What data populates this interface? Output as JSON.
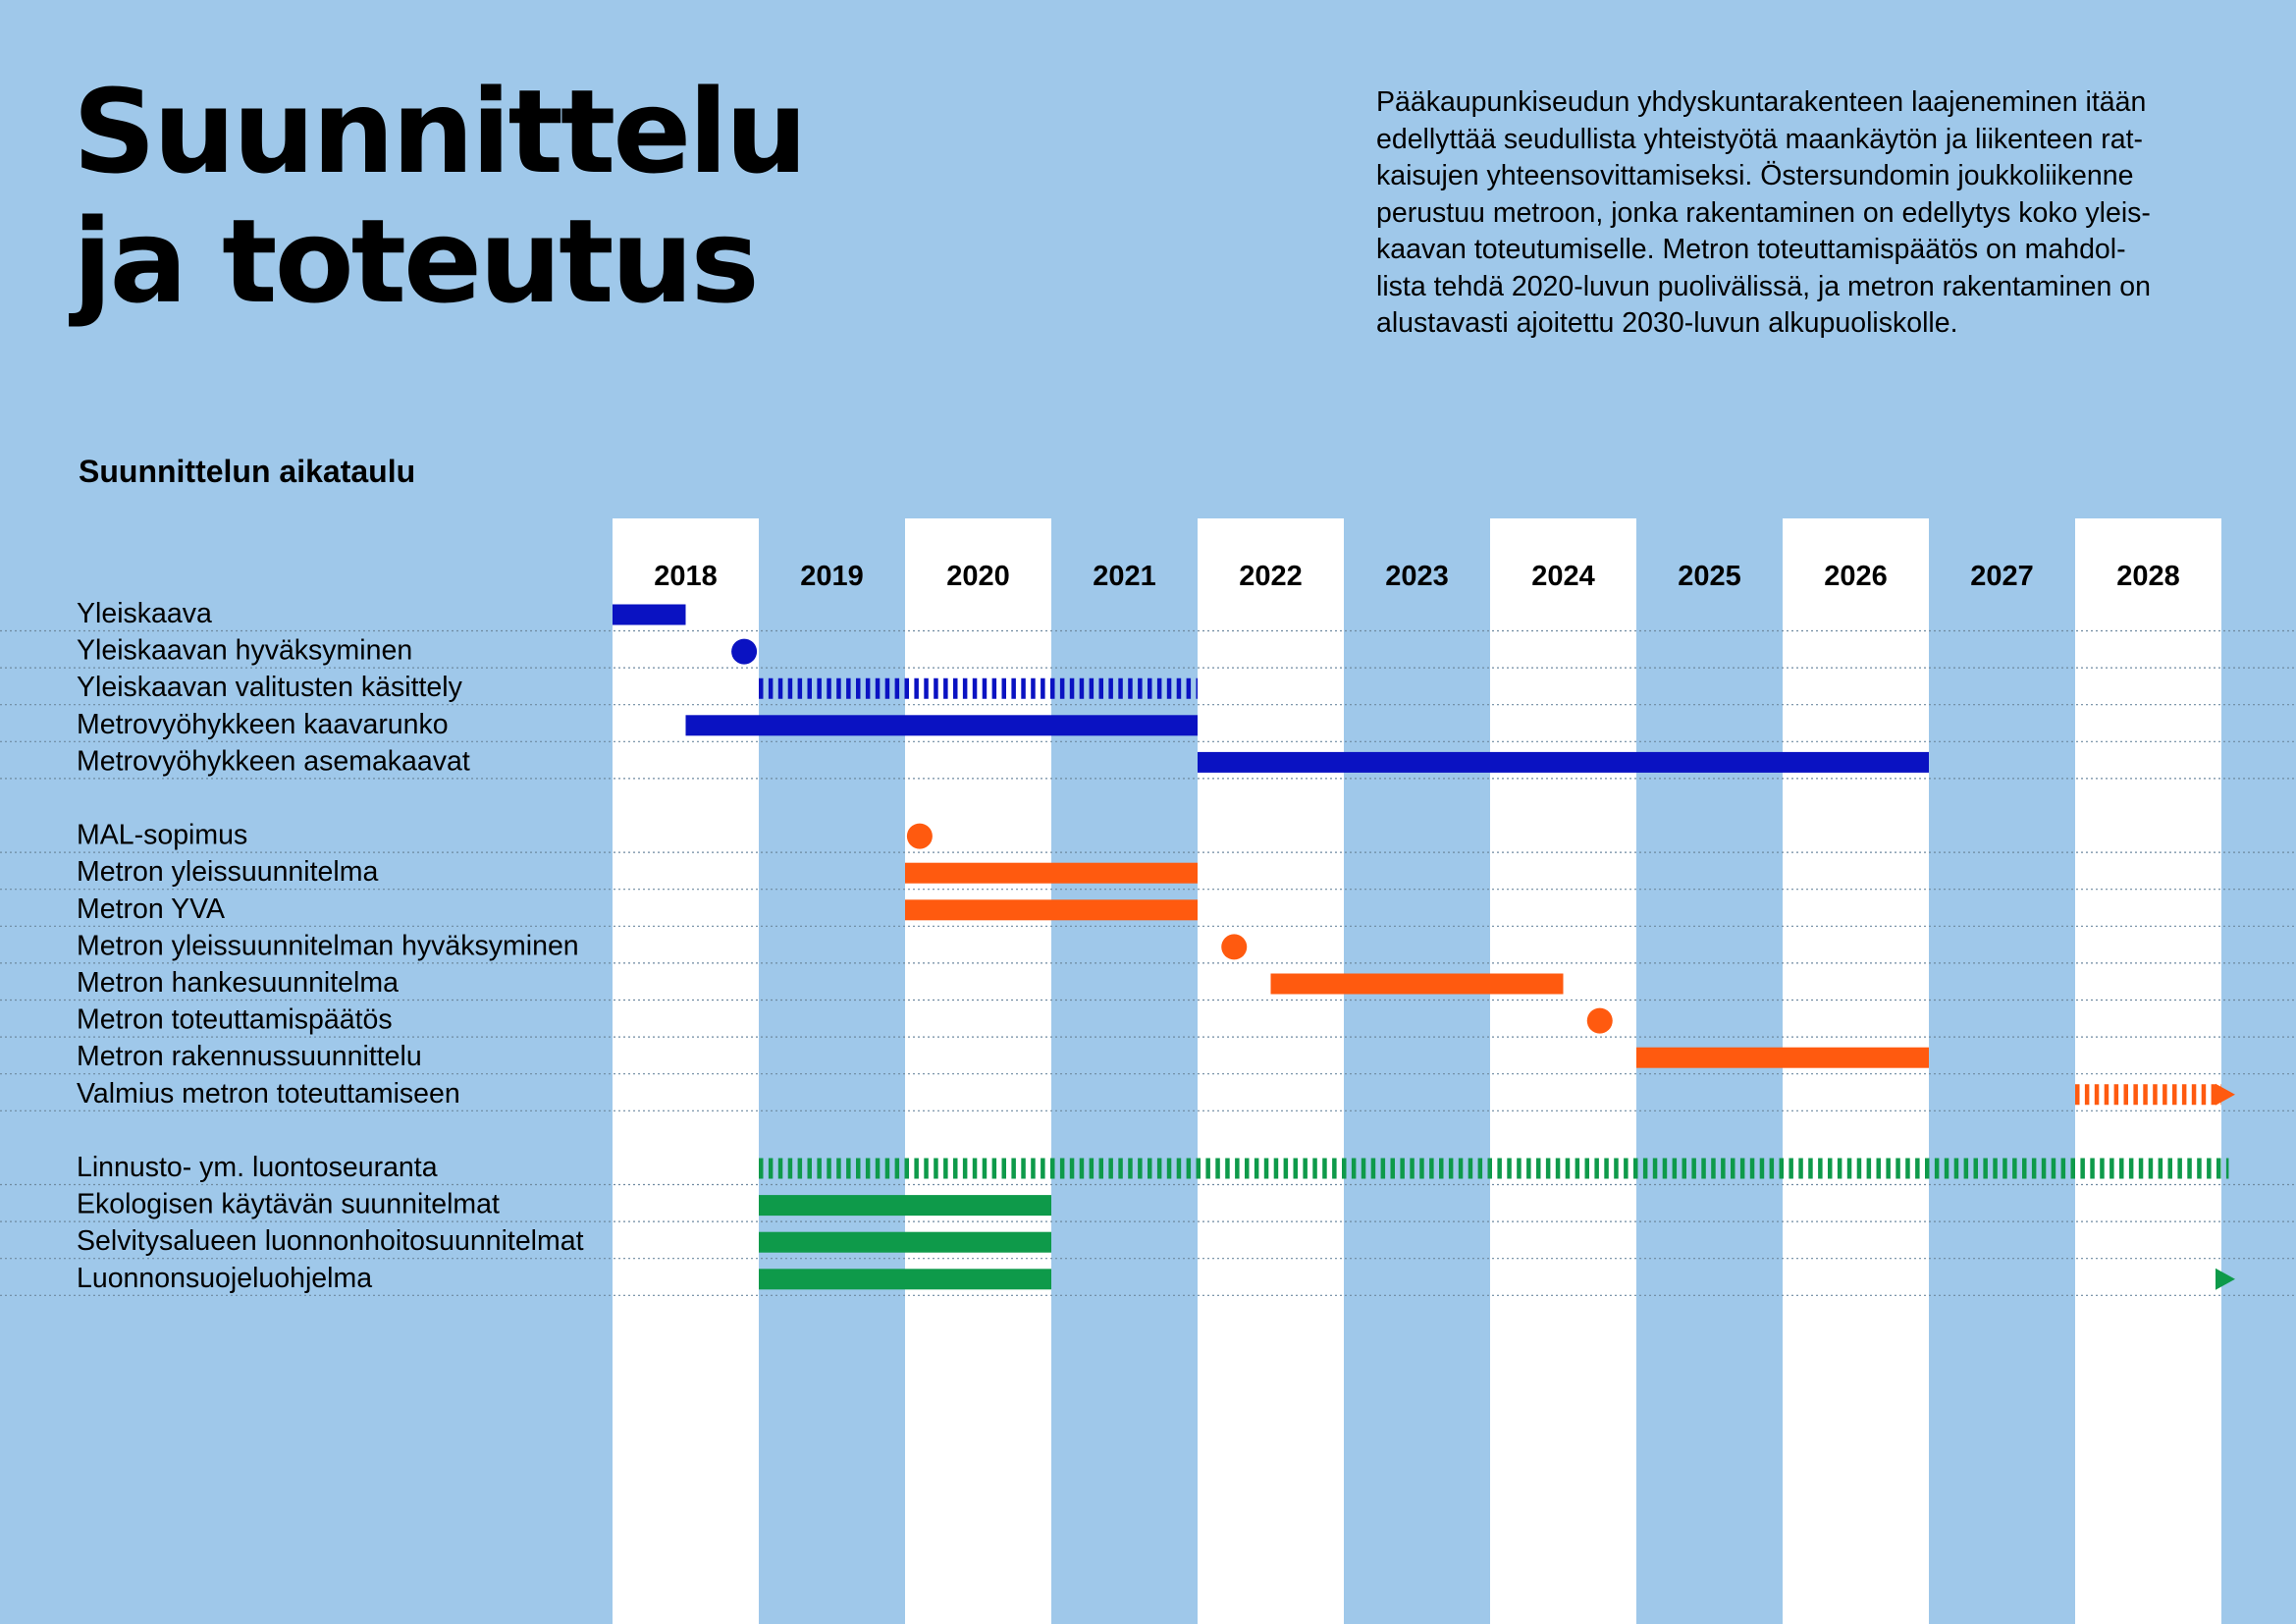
{
  "header": {
    "title_line1": "Suunnittelu",
    "title_line2": "ja toteutus",
    "intro_lines": [
      "Pääkaupunkiseudun yhdyskuntarakenteen laajeneminen itään",
      "edellyttää seudullista yhteistyötä maankäytön ja liikenteen rat-",
      "kaisujen yhteensovittamiseksi. Östersundomin joukkoliikenne",
      "perustuu metroon, jonka rakentaminen on edellytys koko yleis-",
      "kaavan toteutumiselle. Metron toteuttamispäätös on mahdol-",
      "lista tehdä 2020-luvun puolivälissä, ja metron rakentaminen on",
      "alustavasti ajoitettu 2030-luvun alkupuoliskolle."
    ]
  },
  "colors": {
    "background": "#9fc8ea",
    "column_white": "#ffffff",
    "blue": "#0a12c2",
    "orange": "#ff5a0f",
    "green": "#0e9a4a",
    "rule": "#6f8aa0"
  },
  "chart_data": {
    "type": "gantt",
    "title": "Suunnittelun aikataulu",
    "years": [
      "2018",
      "2019",
      "2020",
      "2021",
      "2022",
      "2023",
      "2024",
      "2025",
      "2026",
      "2027",
      "2028"
    ],
    "xlim": [
      2018,
      2029
    ],
    "rows": [
      {
        "label": "Yleiskaava",
        "color": "blue",
        "marks": [
          {
            "kind": "bar",
            "start": 2018.0,
            "end": 2018.5
          }
        ]
      },
      {
        "label": "Yleiskaavan hyväksyminen",
        "color": "blue",
        "marks": [
          {
            "kind": "dot",
            "at": 2018.9
          }
        ]
      },
      {
        "label": "Yleiskaavan valitusten käsittely",
        "color": "blue",
        "marks": [
          {
            "kind": "dashed",
            "start": 2019.0,
            "end": 2022.0
          }
        ]
      },
      {
        "label": "Metrovyöhykkeen kaavarunko",
        "color": "blue",
        "marks": [
          {
            "kind": "bar",
            "start": 2018.5,
            "end": 2022.0
          }
        ]
      },
      {
        "label": "Metrovyöhykkeen asemakaavat",
        "color": "blue",
        "marks": [
          {
            "kind": "bar",
            "start": 2022.0,
            "end": 2027.0
          }
        ]
      },
      {
        "label": "",
        "color": "",
        "marks": []
      },
      {
        "label": "MAL-sopimus",
        "color": "orange",
        "marks": [
          {
            "kind": "dot",
            "at": 2020.1
          }
        ]
      },
      {
        "label": "Metron yleissuunnitelma",
        "color": "orange",
        "marks": [
          {
            "kind": "bar",
            "start": 2020.0,
            "end": 2022.0
          }
        ]
      },
      {
        "label": "Metron YVA",
        "color": "orange",
        "marks": [
          {
            "kind": "bar",
            "start": 2020.0,
            "end": 2022.0
          }
        ]
      },
      {
        "label": "Metron yleissuunnitelman hyväksyminen",
        "color": "orange",
        "marks": [
          {
            "kind": "dot",
            "at": 2022.25
          }
        ]
      },
      {
        "label": "Metron hankesuunnitelma",
        "color": "orange",
        "marks": [
          {
            "kind": "bar",
            "start": 2022.5,
            "end": 2024.5
          }
        ]
      },
      {
        "label": "Metron toteuttamispäätös",
        "color": "orange",
        "marks": [
          {
            "kind": "dot",
            "at": 2024.75
          }
        ]
      },
      {
        "label": "Metron rakennussuunnittelu",
        "color": "orange",
        "marks": [
          {
            "kind": "bar",
            "start": 2025.0,
            "end": 2027.0
          }
        ]
      },
      {
        "label": "Valmius metron toteuttamiseen",
        "color": "orange",
        "marks": [
          {
            "kind": "dashed",
            "start": 2028.0,
            "end": 2029.0
          },
          {
            "kind": "arrow",
            "at": 2029.0
          }
        ]
      },
      {
        "label": "",
        "color": "",
        "marks": []
      },
      {
        "label": "Linnusto- ym. luontoseuranta",
        "color": "green",
        "marks": [
          {
            "kind": "dashed",
            "start": 2019.0,
            "end": 2029.05
          }
        ]
      },
      {
        "label": "Ekologisen käytävän suunnitelmat",
        "color": "green",
        "marks": [
          {
            "kind": "bar",
            "start": 2019.0,
            "end": 2021.0
          }
        ]
      },
      {
        "label": "Selvitysalueen luonnonhoitosuunnitelmat",
        "color": "green",
        "marks": [
          {
            "kind": "bar",
            "start": 2019.0,
            "end": 2021.0
          }
        ]
      },
      {
        "label": "Luonnonsuojeluohjelma",
        "color": "green",
        "marks": [
          {
            "kind": "bar",
            "start": 2019.0,
            "end": 2021.0
          },
          {
            "kind": "arrow",
            "at": 2029.0
          }
        ]
      }
    ]
  }
}
